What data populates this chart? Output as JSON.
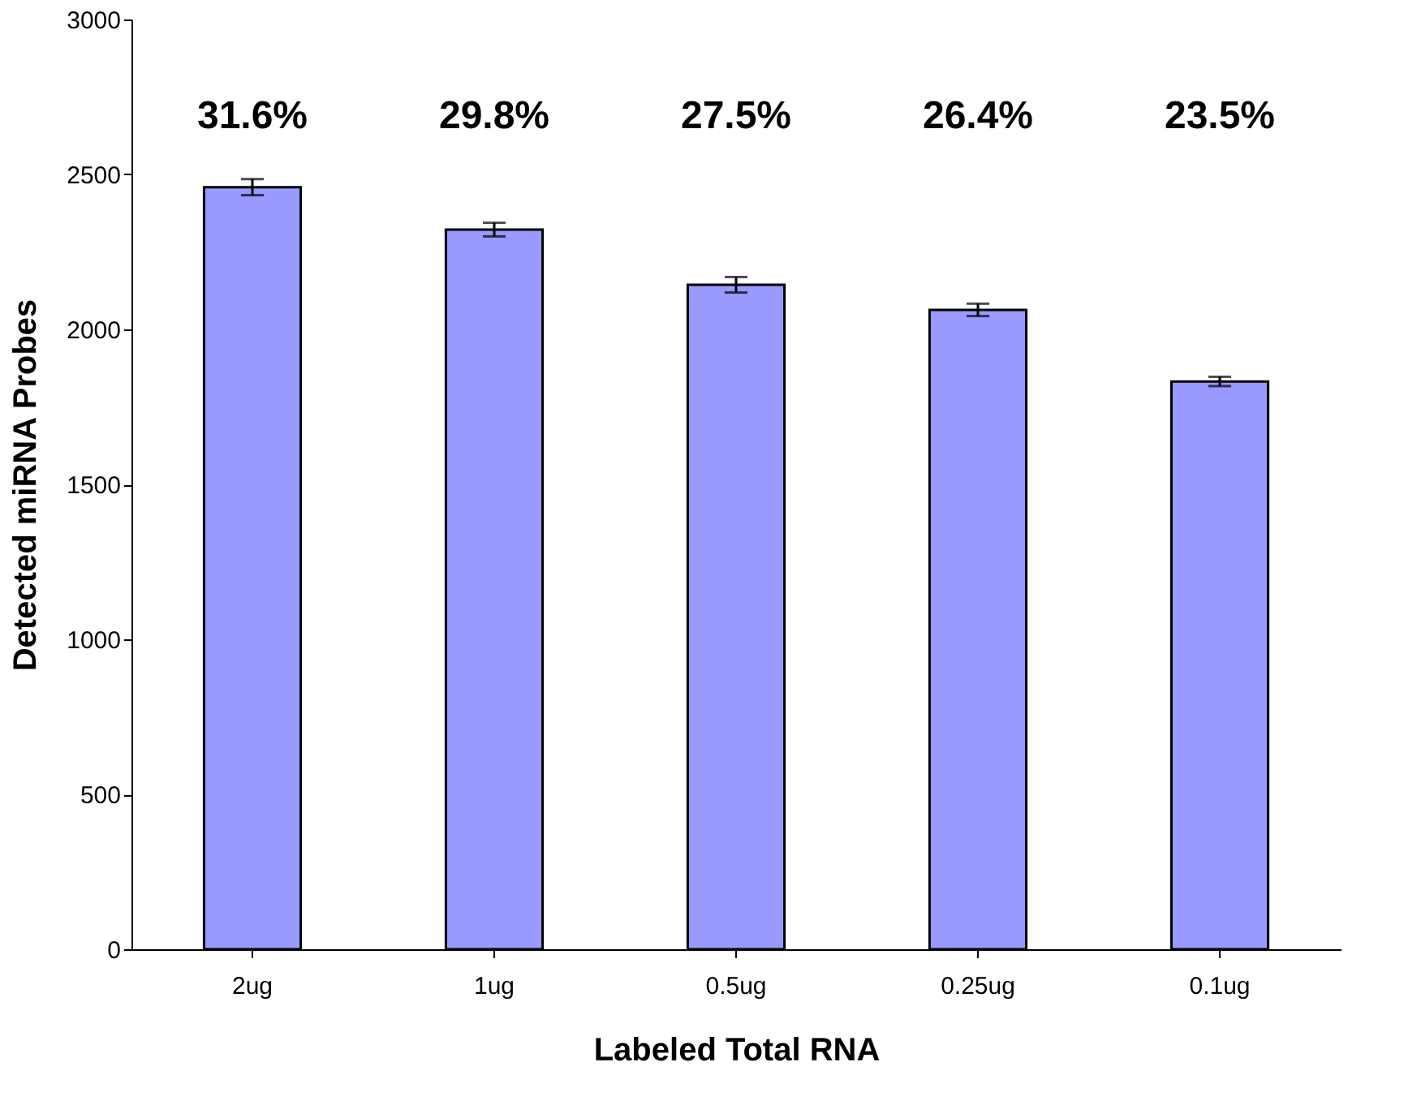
{
  "chart_data": {
    "type": "bar",
    "xlabel": "Labeled Total RNA",
    "ylabel": "Detected miRNA Probes",
    "categories": [
      "2ug",
      "1ug",
      "0.5ug",
      "0.25ug",
      "0.1ug"
    ],
    "values": [
      2459,
      2322,
      2144,
      2063,
      1832
    ],
    "errors": [
      26,
      22,
      25,
      20,
      15
    ],
    "color": "#9999ff",
    "ylim": [
      0,
      3000
    ],
    "yticks": [
      0,
      500,
      1000,
      1500,
      2000,
      2500,
      3000
    ],
    "grid": false,
    "annotations": [
      "31.6%",
      "29.8%",
      "27.5%",
      "26.4%",
      "23.5%"
    ]
  }
}
